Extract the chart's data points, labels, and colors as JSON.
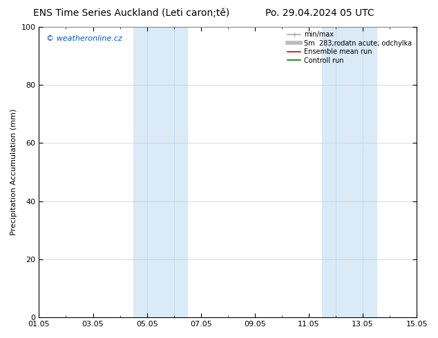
{
  "title_left": "ENS Time Series Auckland (Leti caron;tě)",
  "title_right": "Po. 29.04.2024 05 UTC",
  "ylabel": "Precipitation Accumulation (mm)",
  "watermark": "© weatheronline.cz",
  "watermark_color": "#0055cc",
  "ylim": [
    0,
    100
  ],
  "xlim_start": 0.0,
  "xlim_end": 14.0,
  "xtick_positions": [
    0,
    2,
    4,
    6,
    8,
    10,
    12,
    14
  ],
  "xtick_labels": [
    "01.05",
    "03.05",
    "05.05",
    "07.05",
    "09.05",
    "11.05",
    "13.05",
    "15.05"
  ],
  "shaded_bands": [
    {
      "x_start": 3.5,
      "x_end": 4.0,
      "color": "#daeaf7",
      "alpha": 1.0
    },
    {
      "x_start": 4.0,
      "x_end": 5.0,
      "color": "#daeaf7",
      "alpha": 1.0
    },
    {
      "x_start": 5.0,
      "x_end": 5.5,
      "color": "#daeaf7",
      "alpha": 1.0
    },
    {
      "x_start": 10.5,
      "x_end": 11.0,
      "color": "#daeaf7",
      "alpha": 1.0
    },
    {
      "x_start": 11.0,
      "x_end": 12.0,
      "color": "#daeaf7",
      "alpha": 1.0
    },
    {
      "x_start": 12.0,
      "x_end": 12.5,
      "color": "#daeaf7",
      "alpha": 1.0
    }
  ],
  "legend_items": [
    {
      "label": "min/max",
      "color": "#aaaaaa",
      "lw": 1.2,
      "type": "line_with_cap"
    },
    {
      "label": "Sm  283;rodatn acute; odchylka",
      "color": "#bbbbbb",
      "lw": 4,
      "type": "line"
    },
    {
      "label": "Ensemble mean run",
      "color": "#dd0000",
      "lw": 1.2,
      "type": "line"
    },
    {
      "label": "Controll run",
      "color": "#007700",
      "lw": 1.2,
      "type": "line"
    }
  ],
  "bg_color": "#ffffff",
  "plot_bg_color": "#ffffff",
  "grid_color": "#cccccc",
  "border_color": "#000000",
  "title_fontsize": 10,
  "axis_label_fontsize": 8,
  "tick_fontsize": 8,
  "watermark_fontsize": 8,
  "legend_fontsize": 7
}
